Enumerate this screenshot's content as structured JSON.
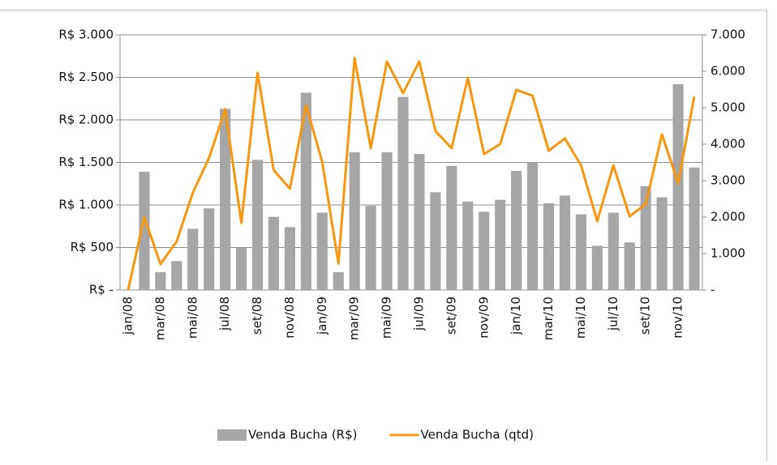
{
  "chart_data": {
    "type": "bar-line",
    "categories": [
      "jan/08",
      null,
      "mar/08",
      null,
      "mai/08",
      null,
      "jul/08",
      null,
      "set/08",
      null,
      "nov/08",
      null,
      "jan/09",
      null,
      "mar/09",
      null,
      "mai/09",
      null,
      "jul/09",
      null,
      "set/09",
      null,
      "nov/09",
      null,
      "jan/10",
      null,
      "mar/10",
      null,
      "mai/10",
      null,
      "jul/10",
      null,
      "set/10",
      null,
      "nov/10",
      null
    ],
    "series": [
      {
        "name": "Venda Bucha (R$)",
        "type": "bar",
        "color": "#a6a6a6",
        "values": [
          0,
          1390,
          210,
          340,
          720,
          960,
          2130,
          500,
          1530,
          860,
          740,
          2320,
          910,
          210,
          1620,
          990,
          1620,
          2270,
          1600,
          1150,
          1460,
          1040,
          920,
          1060,
          1400,
          1500,
          1020,
          1110,
          890,
          520,
          910,
          560,
          1220,
          1090,
          2420,
          1440
        ]
      },
      {
        "name": "Venda Bucha (qtd)",
        "type": "line",
        "axis": "y2",
        "color": "#f7960f",
        "values": [
          0,
          2000,
          710,
          1330,
          2670,
          3620,
          4960,
          1840,
          5960,
          3290,
          2780,
          5070,
          3510,
          730,
          6360,
          3890,
          6270,
          5400,
          6270,
          4360,
          3890,
          5820,
          3730,
          4000,
          5490,
          5330,
          3820,
          4160,
          3420,
          1890,
          3420,
          2020,
          2360,
          4270,
          2930,
          5310
        ]
      }
    ],
    "ylim": [
      0,
      3000
    ],
    "yticks": [
      {
        "value": 0,
        "label": "R$ -"
      },
      {
        "value": 500,
        "label": "R$ 500"
      },
      {
        "value": 1000,
        "label": "R$ 1.000"
      },
      {
        "value": 1500,
        "label": "R$ 1.500"
      },
      {
        "value": 2000,
        "label": "R$ 2.000"
      },
      {
        "value": 2500,
        "label": "R$ 2.500"
      },
      {
        "value": 3000,
        "label": "R$ 3.000"
      }
    ],
    "y2lim": [
      0,
      7000
    ],
    "y2ticks": [
      {
        "value": 0,
        "label": "-"
      },
      {
        "value": 1000,
        "label": "1.000"
      },
      {
        "value": 2000,
        "label": "2.000"
      },
      {
        "value": 3000,
        "label": "3.000"
      },
      {
        "value": 4000,
        "label": "4.000"
      },
      {
        "value": 5000,
        "label": "5.000"
      },
      {
        "value": 6000,
        "label": "6.000"
      },
      {
        "value": 7000,
        "label": "7.000"
      }
    ],
    "grid": true,
    "legend": "bottom"
  }
}
